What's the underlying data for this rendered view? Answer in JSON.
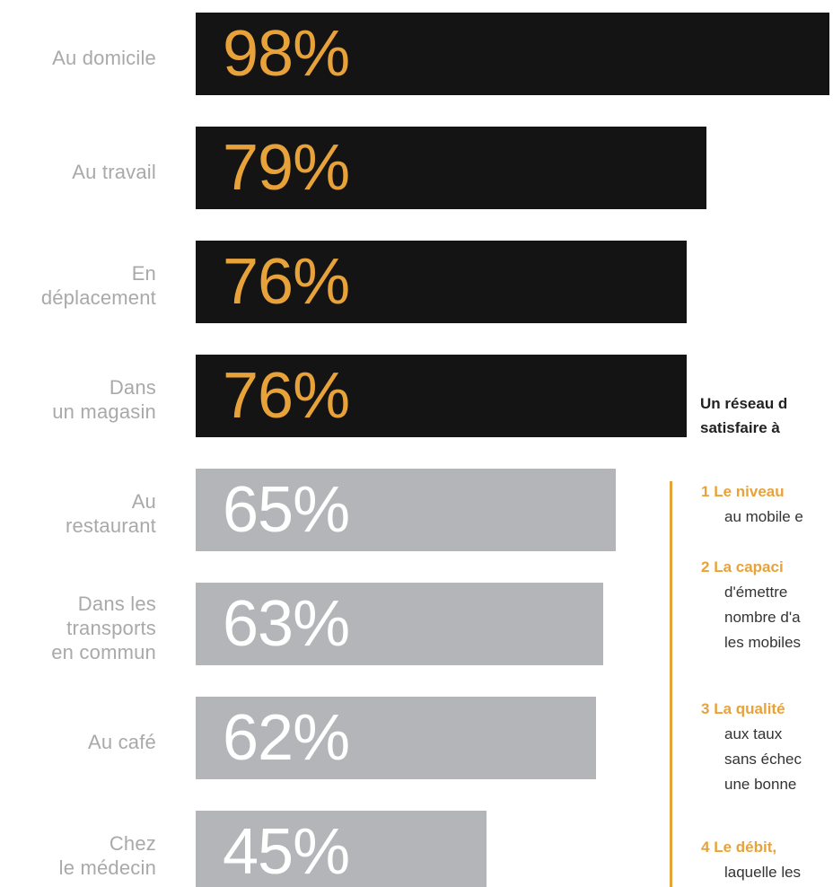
{
  "chart_data": {
    "type": "bar",
    "orientation": "horizontal",
    "categories": [
      "Au domicile",
      "Au travail",
      "En\ndéplacement",
      "Dans\nun magasin",
      "Au\nrestaurant",
      "Dans les\ntransports\nen commun",
      "Au café",
      "Chez\nle médecin"
    ],
    "values": [
      98,
      79,
      76,
      76,
      65,
      63,
      62,
      45
    ],
    "value_labels": [
      "98%",
      "79%",
      "76%",
      "76%",
      "65%",
      "63%",
      "62%",
      "45%"
    ],
    "highlight_count": 4,
    "colors": {
      "dark_bar": "#141414",
      "dark_text": "#e8a23a",
      "light_bar": "#b4b5b8",
      "light_text": "#ffffff",
      "label": "#a9a9a9"
    },
    "xlim": [
      0,
      100
    ],
    "grid": false
  },
  "side_panel": {
    "title_line1": "Un réseau d",
    "title_line2": "satisfaire à",
    "items": [
      {
        "num": "1",
        "lead": "Le niveau",
        "lines": [
          "au mobile e"
        ]
      },
      {
        "num": "2",
        "lead": "La capaci",
        "lines": [
          "d'émettre",
          "nombre d'a",
          "les mobiles"
        ]
      },
      {
        "num": "3",
        "lead": "La qualité",
        "lines": [
          "aux  taux",
          "sans échec",
          "une bonne"
        ]
      },
      {
        "num": "4",
        "lead": "Le débit,",
        "lines": [
          "laquelle les"
        ]
      }
    ]
  }
}
